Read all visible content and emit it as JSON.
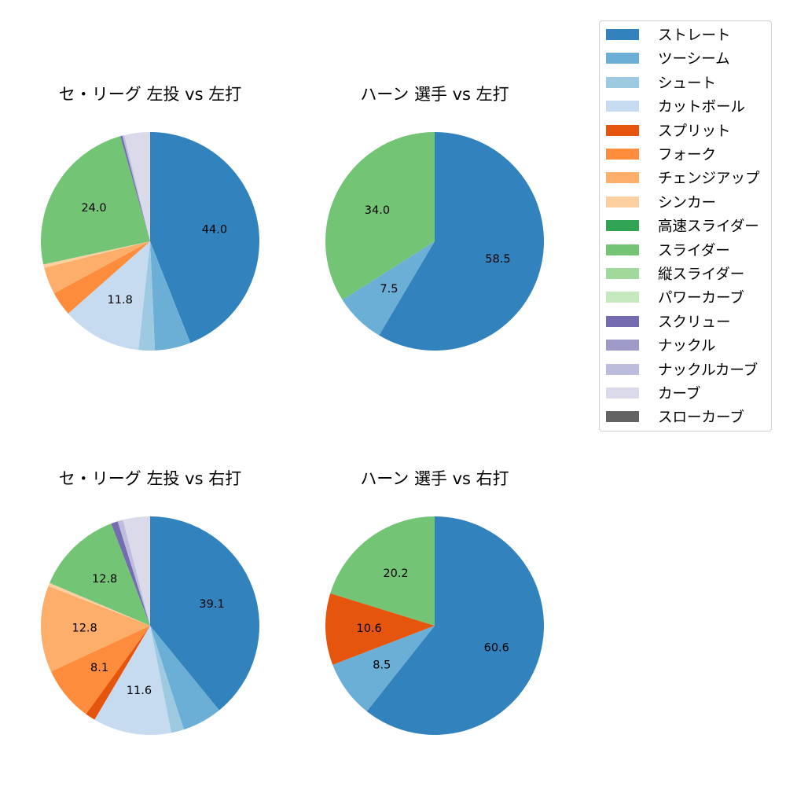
{
  "legend": {
    "items": [
      {
        "label": "ストレート",
        "color": "#3182bd"
      },
      {
        "label": "ツーシーム",
        "color": "#6baed6"
      },
      {
        "label": "シュート",
        "color": "#9ecae1"
      },
      {
        "label": "カットボール",
        "color": "#c6dbef"
      },
      {
        "label": "スプリット",
        "color": "#e6550d"
      },
      {
        "label": "フォーク",
        "color": "#fd8d3c"
      },
      {
        "label": "チェンジアップ",
        "color": "#fdae6b"
      },
      {
        "label": "シンカー",
        "color": "#fdd0a2"
      },
      {
        "label": "高速スライダー",
        "color": "#31a354"
      },
      {
        "label": "スライダー",
        "color": "#74c476"
      },
      {
        "label": "縦スライダー",
        "color": "#a1d99b"
      },
      {
        "label": "パワーカーブ",
        "color": "#c7e9c0"
      },
      {
        "label": "スクリュー",
        "color": "#756bb1"
      },
      {
        "label": "ナックル",
        "color": "#9e9ac8"
      },
      {
        "label": "ナックルカーブ",
        "color": "#bcbddc"
      },
      {
        "label": "カーブ",
        "color": "#dadaeb"
      },
      {
        "label": "スローカーブ",
        "color": "#636363"
      }
    ]
  },
  "chart_data": [
    {
      "type": "pie",
      "title": "セ・リーグ 左投 vs 左打",
      "startangle": 90,
      "counterclock": false,
      "categories": [
        "ストレート",
        "ツーシーム",
        "シュート",
        "カットボール",
        "スプリット",
        "フォーク",
        "チェンジアップ",
        "シンカー",
        "高速スライダー",
        "スライダー",
        "縦スライダー",
        "パワーカーブ",
        "スクリュー",
        "ナックル",
        "ナックルカーブ",
        "カーブ",
        "スローカーブ"
      ],
      "values": [
        44.0,
        5.3,
        2.4,
        11.8,
        0.0,
        3.6,
        4.0,
        0.5,
        0.0,
        24.0,
        0.0,
        0.0,
        0.3,
        0.0,
        0.3,
        3.8,
        0.0
      ],
      "labels_shown": {
        "ストレート": "44.0",
        "カットボール": "11.8",
        "スライダー": "24.0"
      }
    },
    {
      "type": "pie",
      "title": "ハーン 選手 vs 左打",
      "startangle": 90,
      "counterclock": false,
      "categories": [
        "ストレート",
        "ツーシーム",
        "スライダー"
      ],
      "values": [
        58.5,
        7.5,
        34.0
      ],
      "labels_shown": {
        "ストレート": "58.5",
        "ツーシーム": "7.5",
        "スライダー": "34.0"
      }
    },
    {
      "type": "pie",
      "title": "セ・リーグ 左投 vs 右打",
      "startangle": 90,
      "counterclock": false,
      "categories": [
        "ストレート",
        "ツーシーム",
        "シュート",
        "カットボール",
        "スプリット",
        "フォーク",
        "チェンジアップ",
        "シンカー",
        "高速スライダー",
        "スライダー",
        "縦スライダー",
        "パワーカーブ",
        "スクリュー",
        "ナックル",
        "ナックルカーブ",
        "カーブ",
        "スローカーブ"
      ],
      "values": [
        39.1,
        5.9,
        1.9,
        11.6,
        1.5,
        8.1,
        12.8,
        0.5,
        0.0,
        12.8,
        0.0,
        0.0,
        1.0,
        0.0,
        0.8,
        4.0,
        0.0
      ],
      "labels_shown": {
        "ストレート": "39.1",
        "カットボール": "11.6",
        "フォーク": "8.1",
        "チェンジアップ": "12.8",
        "スライダー": "12.8"
      }
    },
    {
      "type": "pie",
      "title": "ハーン 選手 vs 右打",
      "startangle": 90,
      "counterclock": false,
      "categories": [
        "ストレート",
        "ツーシーム",
        "スプリット",
        "スライダー"
      ],
      "values": [
        60.6,
        8.5,
        10.6,
        20.2
      ],
      "labels_shown": {
        "ストレート": "60.6",
        "ツーシーム": "8.5",
        "スプリット": "10.6",
        "スライダー": "20.2"
      }
    }
  ]
}
